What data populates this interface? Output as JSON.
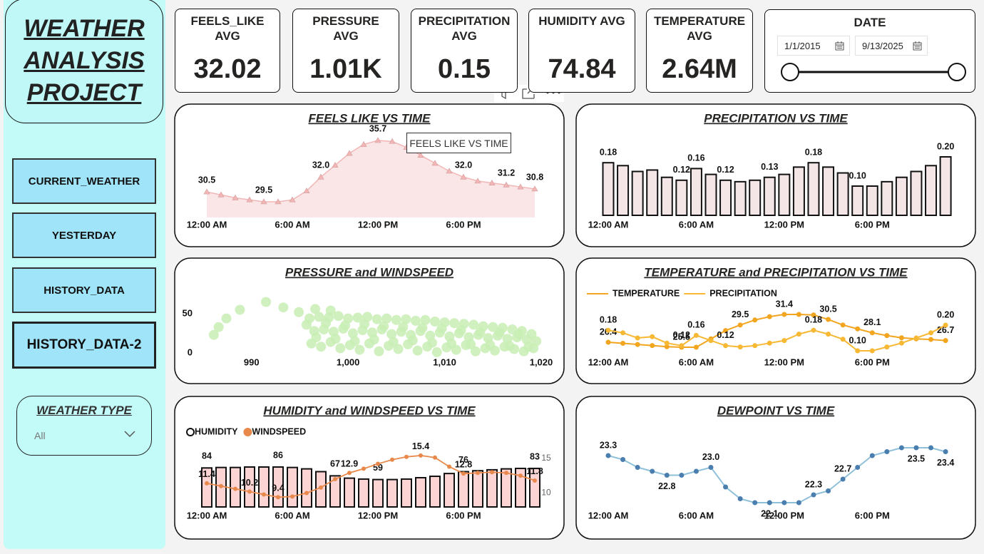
{
  "sidebar": {
    "title": "WEATHER ANALYSIS PROJECT",
    "buttons": [
      "CURRENT_WEATHER",
      "YESTERDAY",
      "HISTORY_DATA",
      "HISTORY_DATA-2"
    ],
    "slicer": {
      "title": "WEATHER TYPE",
      "value": "All"
    }
  },
  "kpis": [
    {
      "label": "FEELS_LIKE AVG",
      "value": "32.02"
    },
    {
      "label": "PRESSURE AVG",
      "value": "1.01K"
    },
    {
      "label": "PRECIPITATION AVG",
      "value": "0.15"
    },
    {
      "label": "HUMIDITY AVG",
      "value": "74.84"
    },
    {
      "label": "TEMPERATURE AVG",
      "value": "2.64M"
    }
  ],
  "date": {
    "title": "DATE",
    "start": "1/1/2015",
    "end": "9/13/2025"
  },
  "tooltip": "FEELS LIKE VS TIME",
  "chart_data": [
    {
      "type": "area",
      "title": "FEELS LIKE VS TIME",
      "color": "#f2b6b6",
      "categories": [
        "12:00 AM",
        null,
        null,
        null,
        null,
        null,
        "6:00 AM",
        null,
        null,
        null,
        null,
        null,
        "12:00 PM",
        null,
        null,
        null,
        null,
        null,
        "6:00 PM",
        null,
        null,
        null,
        null,
        null
      ],
      "values": [
        30.5,
        30.2,
        29.9,
        29.7,
        29.5,
        29.5,
        29.7,
        30.6,
        32.0,
        33.2,
        34.4,
        35.3,
        35.7,
        35.6,
        35.0,
        34.2,
        33.4,
        32.6,
        32.0,
        31.6,
        31.4,
        31.2,
        31.0,
        30.8
      ],
      "value_labels": [
        "30.5",
        null,
        null,
        null,
        "29.5",
        null,
        null,
        null,
        "32.0",
        null,
        null,
        null,
        "35.7",
        null,
        null,
        null,
        null,
        null,
        "32.0",
        null,
        null,
        "31.2",
        null,
        "30.8"
      ]
    },
    {
      "type": "bar",
      "title": "PRECIPITATION VS TIME",
      "color": "#f4e6e6",
      "categories": [
        "12:00 AM",
        null,
        null,
        null,
        null,
        null,
        "6:00 AM",
        null,
        null,
        null,
        null,
        null,
        "12:00 PM",
        null,
        null,
        null,
        null,
        null,
        "6:00 PM",
        null,
        null,
        null,
        null,
        null
      ],
      "values": [
        0.18,
        0.17,
        0.15,
        0.155,
        0.13,
        0.12,
        0.16,
        0.14,
        0.12,
        0.115,
        0.12,
        0.13,
        0.14,
        0.165,
        0.18,
        0.165,
        0.145,
        0.1,
        0.1,
        0.115,
        0.13,
        0.15,
        0.17,
        0.2
      ],
      "value_labels": [
        "0.18",
        null,
        null,
        null,
        null,
        "0.12",
        "0.16",
        null,
        "0.12",
        null,
        null,
        "0.13",
        null,
        null,
        "0.18",
        null,
        null,
        "0.10",
        null,
        null,
        null,
        null,
        null,
        "0.20"
      ]
    },
    {
      "type": "scatter",
      "title": "PRESSURE and WINDSPEED",
      "color": "#c8efb4",
      "x": [
        986.1,
        986.6,
        987.4,
        988.8,
        991.5,
        993.3,
        994.9,
        996.6,
        998.2,
        996,
        997,
        998,
        999,
        1000,
        1001,
        1002,
        1003,
        1004,
        1005,
        1006,
        1007,
        1008,
        1009,
        1010,
        1011,
        1012,
        1013,
        1014,
        1015,
        1016,
        1017,
        1018,
        1019,
        996.5,
        997.5,
        998.5,
        999.5,
        1000.5,
        1001.5,
        1002.5,
        1003.5,
        1004.5,
        1005.5,
        1006.5,
        1007.5,
        1008.5,
        1009.5,
        1010.5,
        1011.5,
        1012.5,
        1013.5,
        1014.5,
        1015.5,
        1016.5,
        1017.5,
        1018.5,
        1019.5,
        996.2,
        997.2,
        998.2,
        999.2,
        1000.2,
        1001.2,
        1002.2,
        1003.2,
        1004.2,
        1005.2,
        1006.2,
        1007.2,
        1008.2,
        1009.2,
        1010.2,
        1011.2,
        1012.2,
        1013.2,
        1014.2,
        1015.2,
        1016.2,
        1017.2,
        1018.2,
        1019.2,
        995.7,
        996.7,
        997.7,
        998.7,
        999.7,
        1000.7,
        1001.7,
        1002.7,
        1003.7,
        1004.7,
        1005.7,
        1006.7,
        1007.7,
        1008.7,
        1009.7,
        1010.7,
        1011.7,
        1012.7,
        1013.7,
        1014.7,
        1015.7,
        1016.7,
        1017.7,
        1018.7
      ],
      "values": [
        23,
        33,
        44,
        55,
        65,
        58,
        52,
        56,
        54,
        44,
        46,
        45,
        47,
        44,
        45,
        46,
        43,
        44,
        42,
        43,
        41,
        42,
        40,
        39,
        38,
        37,
        36,
        34,
        33,
        32,
        30,
        28,
        24,
        28,
        30,
        27,
        31,
        25,
        29,
        26,
        30,
        24,
        27,
        23,
        28,
        22,
        26,
        21,
        25,
        20,
        23,
        19,
        22,
        18,
        20,
        17,
        15,
        12,
        8,
        14,
        6,
        10,
        4,
        12,
        2,
        9,
        5,
        11,
        3,
        8,
        1,
        7,
        4,
        10,
        2,
        6,
        3,
        8,
        5,
        2,
        6,
        36,
        20,
        38,
        18,
        35,
        15,
        37,
        17,
        34,
        14,
        33,
        16,
        32,
        13,
        31,
        12,
        29,
        11,
        27,
        10,
        26,
        9,
        24,
        8
      ],
      "xlim": [
        985,
        1020
      ],
      "xticks": [
        990,
        {
          "value": 1000,
          "label": "1,000"
        },
        {
          "value": 1010,
          "label": "1,010"
        },
        {
          "value": 1020,
          "label": "1,020"
        }
      ],
      "ylim": [
        0,
        70
      ],
      "yticks": [
        0,
        50
      ]
    },
    {
      "type": "line",
      "title": "TEMPERATURE and PRECIPITATION VS TIME",
      "categories": [
        "12:00 AM",
        null,
        null,
        null,
        null,
        null,
        "6:00 AM",
        null,
        null,
        null,
        null,
        null,
        "12:00 PM",
        null,
        null,
        null,
        null,
        null,
        "6:00 PM",
        null,
        null,
        null,
        null,
        null
      ],
      "series": [
        {
          "name": "TEMPERATURE",
          "color": "#f2a51f",
          "values": [
            26.4,
            26.2,
            26.0,
            25.8,
            25.6,
            25.5,
            25.5,
            27.0,
            28.5,
            29.5,
            30.4,
            31.0,
            31.4,
            31.4,
            31.3,
            30.5,
            29.5,
            28.8,
            28.1,
            27.6,
            27.2,
            27.0,
            26.9,
            26.7
          ],
          "value_labels": [
            "26.4",
            null,
            null,
            null,
            null,
            "25.5",
            null,
            null,
            null,
            "29.5",
            null,
            null,
            "31.4",
            null,
            null,
            "30.5",
            null,
            null,
            "28.1",
            null,
            null,
            null,
            null,
            "26.7"
          ]
        },
        {
          "name": "PRECIPITATION",
          "color": "#f7b834",
          "axis": "y2",
          "values": [
            0.18,
            0.17,
            0.15,
            0.155,
            0.13,
            0.12,
            0.16,
            0.14,
            0.12,
            0.115,
            0.12,
            0.13,
            0.14,
            0.165,
            0.18,
            0.165,
            0.145,
            0.1,
            0.1,
            0.115,
            0.13,
            0.15,
            0.17,
            0.2
          ],
          "value_labels": [
            "0.18",
            null,
            null,
            null,
            null,
            "0.12",
            "0.16",
            null,
            "0.12",
            null,
            null,
            null,
            null,
            null,
            "0.18",
            null,
            null,
            "0.10",
            null,
            null,
            null,
            null,
            null,
            "0.20"
          ]
        }
      ]
    },
    {
      "type": "combo",
      "title": "HUMIDITY and WINDSPEED VS TIME",
      "categories": [
        "12:00 AM",
        null,
        null,
        null,
        null,
        null,
        "6:00 AM",
        null,
        null,
        null,
        null,
        null,
        "12:00 PM",
        null,
        null,
        null,
        null,
        null,
        "6:00 PM",
        null,
        null,
        null,
        null,
        null
      ],
      "series": [
        {
          "name": "HUMIDITY",
          "type": "bar",
          "color": "#fcd4d4",
          "values": [
            84,
            85,
            85,
            86,
            86,
            86,
            85,
            82,
            76,
            67,
            62,
            60,
            59,
            59,
            60,
            63,
            66,
            72,
            76,
            78,
            80,
            82,
            83,
            83
          ],
          "value_labels": [
            "84",
            null,
            null,
            null,
            null,
            "86",
            null,
            null,
            null,
            "67",
            null,
            null,
            "59",
            null,
            null,
            null,
            null,
            null,
            "76",
            null,
            null,
            null,
            null,
            "83"
          ]
        },
        {
          "name": "WINDSPEED",
          "type": "line",
          "color": "#e8884a",
          "axis": "y2",
          "values": [
            11.4,
            11.0,
            10.6,
            10.2,
            9.8,
            9.4,
            9.5,
            10.0,
            10.8,
            12.0,
            12.9,
            13.5,
            14.2,
            14.8,
            15.2,
            15.4,
            15.1,
            13.8,
            12.8,
            12.9,
            13.0,
            12.9,
            12.5,
            11.8
          ],
          "value_labels": [
            "11.4",
            null,
            null,
            "10.2",
            null,
            "9.4",
            null,
            null,
            null,
            null,
            "12.9",
            null,
            null,
            null,
            null,
            "15.4",
            null,
            null,
            "12.8",
            null,
            null,
            null,
            null,
            "11.8"
          ]
        }
      ],
      "y2lim": [
        8,
        16
      ],
      "y2ticks": [
        10,
        15
      ]
    },
    {
      "type": "line",
      "title": "DEWPOINT VS TIME",
      "color": "#8fc0da",
      "marker_color": "#4a7eae",
      "categories": [
        "12:00 AM",
        null,
        null,
        null,
        null,
        null,
        "6:00 AM",
        null,
        null,
        null,
        null,
        null,
        "12:00 PM",
        null,
        null,
        null,
        null,
        null,
        "6:00 PM",
        null,
        null,
        null,
        null,
        null
      ],
      "values": [
        23.3,
        23.2,
        23.0,
        22.9,
        22.8,
        22.8,
        22.9,
        23.0,
        22.5,
        22.2,
        22.1,
        22.1,
        22.1,
        22.1,
        22.3,
        22.4,
        22.7,
        23.0,
        23.3,
        23.4,
        23.5,
        23.5,
        23.5,
        23.4
      ],
      "value_labels": [
        "23.3",
        null,
        null,
        null,
        "22.8",
        null,
        null,
        "23.0",
        null,
        null,
        null,
        "22.1",
        null,
        null,
        "22.3",
        null,
        "22.7",
        null,
        null,
        null,
        null,
        "23.5",
        null,
        "23.4"
      ]
    }
  ]
}
